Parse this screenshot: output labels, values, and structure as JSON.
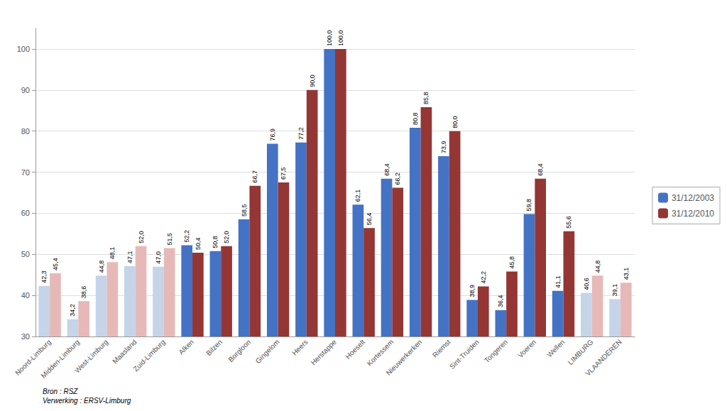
{
  "chart_data": {
    "type": "bar",
    "categories": [
      "Noord-Limburg",
      "Midden-Limburg",
      "West-Limburg",
      "Maasland",
      "Zuid-Limburg",
      "Alken",
      "Bilzen",
      "Borgloon",
      "Gingelom",
      "Heers",
      "Herstappe",
      "Hoeselt",
      "Kortessem",
      "Nieuwerkerken",
      "Riemst",
      "Sint-Truiden",
      "Tongeren",
      "Voeren",
      "Wellen",
      "LIMBURG",
      "VLAANDEREN"
    ],
    "series": [
      {
        "name": "31/12/2003",
        "color": "#4472C4",
        "colors": [
          "#C5D4E8",
          "#C5D4E8",
          "#C5D4E8",
          "#C5D4E8",
          "#C5D4E8",
          "#4472C4",
          "#4472C4",
          "#4472C4",
          "#4472C4",
          "#4472C4",
          "#4472C4",
          "#4472C4",
          "#4472C4",
          "#4472C4",
          "#4472C4",
          "#4472C4",
          "#4472C4",
          "#4472C4",
          "#4472C4",
          "#C5D4E8",
          "#C5D4E8"
        ],
        "values": [
          42.3,
          34.2,
          44.8,
          47.1,
          47.0,
          52.2,
          50.8,
          58.5,
          76.9,
          77.2,
          100.0,
          62.1,
          68.4,
          80.8,
          73.9,
          38.9,
          36.4,
          59.8,
          41.1,
          40.6,
          39.1
        ],
        "value_labels": [
          "42,3",
          "34,2",
          "44,8",
          "47,1",
          "47,0",
          "52,2",
          "50,8",
          "58,5",
          "76,9",
          "77,2",
          "100,0",
          "62,1",
          "68,4",
          "80,8",
          "73,9",
          "38,9",
          "36,4",
          "59,8",
          "41,1",
          "40,6",
          "39,1"
        ]
      },
      {
        "name": "31/12/2010",
        "color": "#943634",
        "colors": [
          "#E6B9B8",
          "#E6B9B8",
          "#E6B9B8",
          "#E6B9B8",
          "#E6B9B8",
          "#943634",
          "#943634",
          "#943634",
          "#943634",
          "#943634",
          "#943634",
          "#943634",
          "#943634",
          "#943634",
          "#943634",
          "#943634",
          "#943634",
          "#943634",
          "#943634",
          "#E6B9B8",
          "#E6B9B8"
        ],
        "values": [
          45.4,
          38.6,
          48.1,
          52.0,
          51.5,
          50.4,
          52.0,
          66.7,
          67.5,
          90.0,
          100.0,
          56.4,
          66.2,
          85.8,
          80.0,
          42.2,
          45.8,
          68.4,
          55.6,
          44.8,
          43.1
        ],
        "value_labels": [
          "45,4",
          "38,6",
          "48,1",
          "52,0",
          "51,5",
          "50,4",
          "52,0",
          "66,7",
          "67,5",
          "90,0",
          "100,0",
          "56,4",
          "66,2",
          "85,8",
          "80,0",
          "42,2",
          "45,8",
          "68,4",
          "55,6",
          "44,8",
          "43,1"
        ]
      }
    ],
    "ylim": [
      30,
      105
    ],
    "yticks": [
      30,
      40,
      50,
      60,
      70,
      80,
      90,
      100
    ],
    "grid": true,
    "legend": "right",
    "data_labels": true,
    "annotations": [
      "Bron : RSZ\nVerwerking : ERSV-Limburg"
    ]
  }
}
